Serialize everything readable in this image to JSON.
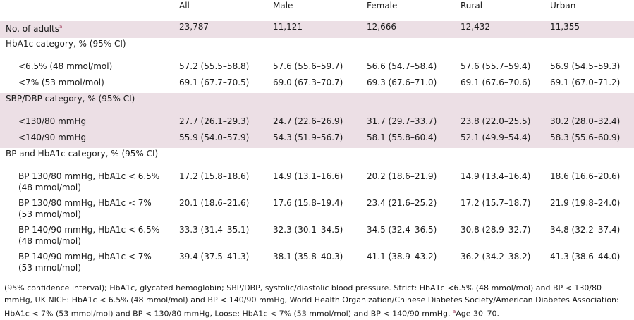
{
  "header": {
    "columns": [
      "All",
      "Male",
      "Female",
      "Rural",
      "Urban"
    ]
  },
  "adults": {
    "label": "No. of adults",
    "sup": "a",
    "values": [
      "23,787",
      "11,121",
      "12,666",
      "12,432",
      "11,355"
    ]
  },
  "hba1c": {
    "title": "HbA1c category, % (95% CI)",
    "rows": [
      {
        "label": "<6.5% (48 mmol/mol)",
        "values": [
          "57.2 (55.5–58.8)",
          "57.6 (55.6–59.7)",
          "56.6 (54.7–58.4)",
          "57.6 (55.7–59.4)",
          "56.9 (54.5–59.3)"
        ]
      },
      {
        "label": "<7% (53 mmol/mol)",
        "values": [
          "69.1 (67.7–70.5)",
          "69.0 (67.3–70.7)",
          "69.3 (67.6–71.0)",
          "69.1 (67.6–70.6)",
          "69.1 (67.0–71.2)"
        ]
      }
    ]
  },
  "sbp": {
    "title": "SBP/DBP category, % (95% CI)",
    "rows": [
      {
        "label": "<130/80 mmHg",
        "values": [
          "27.7 (26.1–29.3)",
          "24.7 (22.6–26.9)",
          "31.7 (29.7–33.7)",
          "23.8 (22.0–25.5)",
          "30.2 (28.0–32.4)"
        ]
      },
      {
        "label": "<140/90 mmHg",
        "values": [
          "55.9 (54.0–57.9)",
          "54.3 (51.9–56.7)",
          "58.1 (55.8–60.4)",
          "52.1 (49.9–54.4)",
          "58.3 (55.6–60.9)"
        ]
      }
    ]
  },
  "bp": {
    "title": "BP and HbA1c category, % (95% CI)",
    "rows": [
      {
        "label_line1": "BP 130/80 mmHg, HbA1c < 6.5%",
        "label_line2": "(48 mmol/mol)",
        "values": [
          "17.2 (15.8–18.6)",
          "14.9 (13.1–16.6)",
          "20.2 (18.6–21.9)",
          "14.9 (13.4–16.4)",
          "18.6 (16.6–20.6)"
        ]
      },
      {
        "label_line1": "BP 130/80 mmHg, HbA1c < 7%",
        "label_line2": "(53 mmol/mol)",
        "values": [
          "20.1 (18.6–21.6)",
          "17.6 (15.8–19.4)",
          "23.4 (21.6–25.2)",
          "17.2 (15.7–18.7)",
          "21.9 (19.8–24.0)"
        ]
      },
      {
        "label_line1": "BP 140/90 mmHg, HbA1c < 6.5%",
        "label_line2": "(48 mmol/mol)",
        "values": [
          "33.3 (31.4–35.1)",
          "32.3 (30.1–34.5)",
          "34.5 (32.4–36.5)",
          "30.8 (28.9–32.7)",
          "34.8 (32.2–37.4)"
        ]
      },
      {
        "label_line1": "BP 140/90 mmHg, HbA1c < 7%",
        "label_line2": "(53 mmol/mol)",
        "values": [
          "39.4 (37.5–41.3)",
          "38.1 (35.8–40.3)",
          "41.1 (38.9–43.2)",
          "36.2 (34.2–38.2)",
          "41.3 (38.6–44.0)"
        ]
      }
    ]
  },
  "footnote": {
    "text": "(95% confidence interval); HbA1c, glycated hemoglobin; SBP/DBP, systolic/diastolic blood pressure. Strict: HbA1c <6.5% (48 mmol/mol) and BP < 130/80 mmHg, UK NICE: HbA1c < 6.5% (48 mmol/mol) and BP < 140/90 mmHg, World Health Organization/Chinese Diabetes Society/American Diabetes Association: HbA1c < 7% (53 mmol/mol) and BP < 130/80 mmHg, Loose: HbA1c < 7% (53 mmol/mol) and BP < 140/90 mmHg. ",
    "sup": "a",
    "tail": "Age 30–70."
  }
}
